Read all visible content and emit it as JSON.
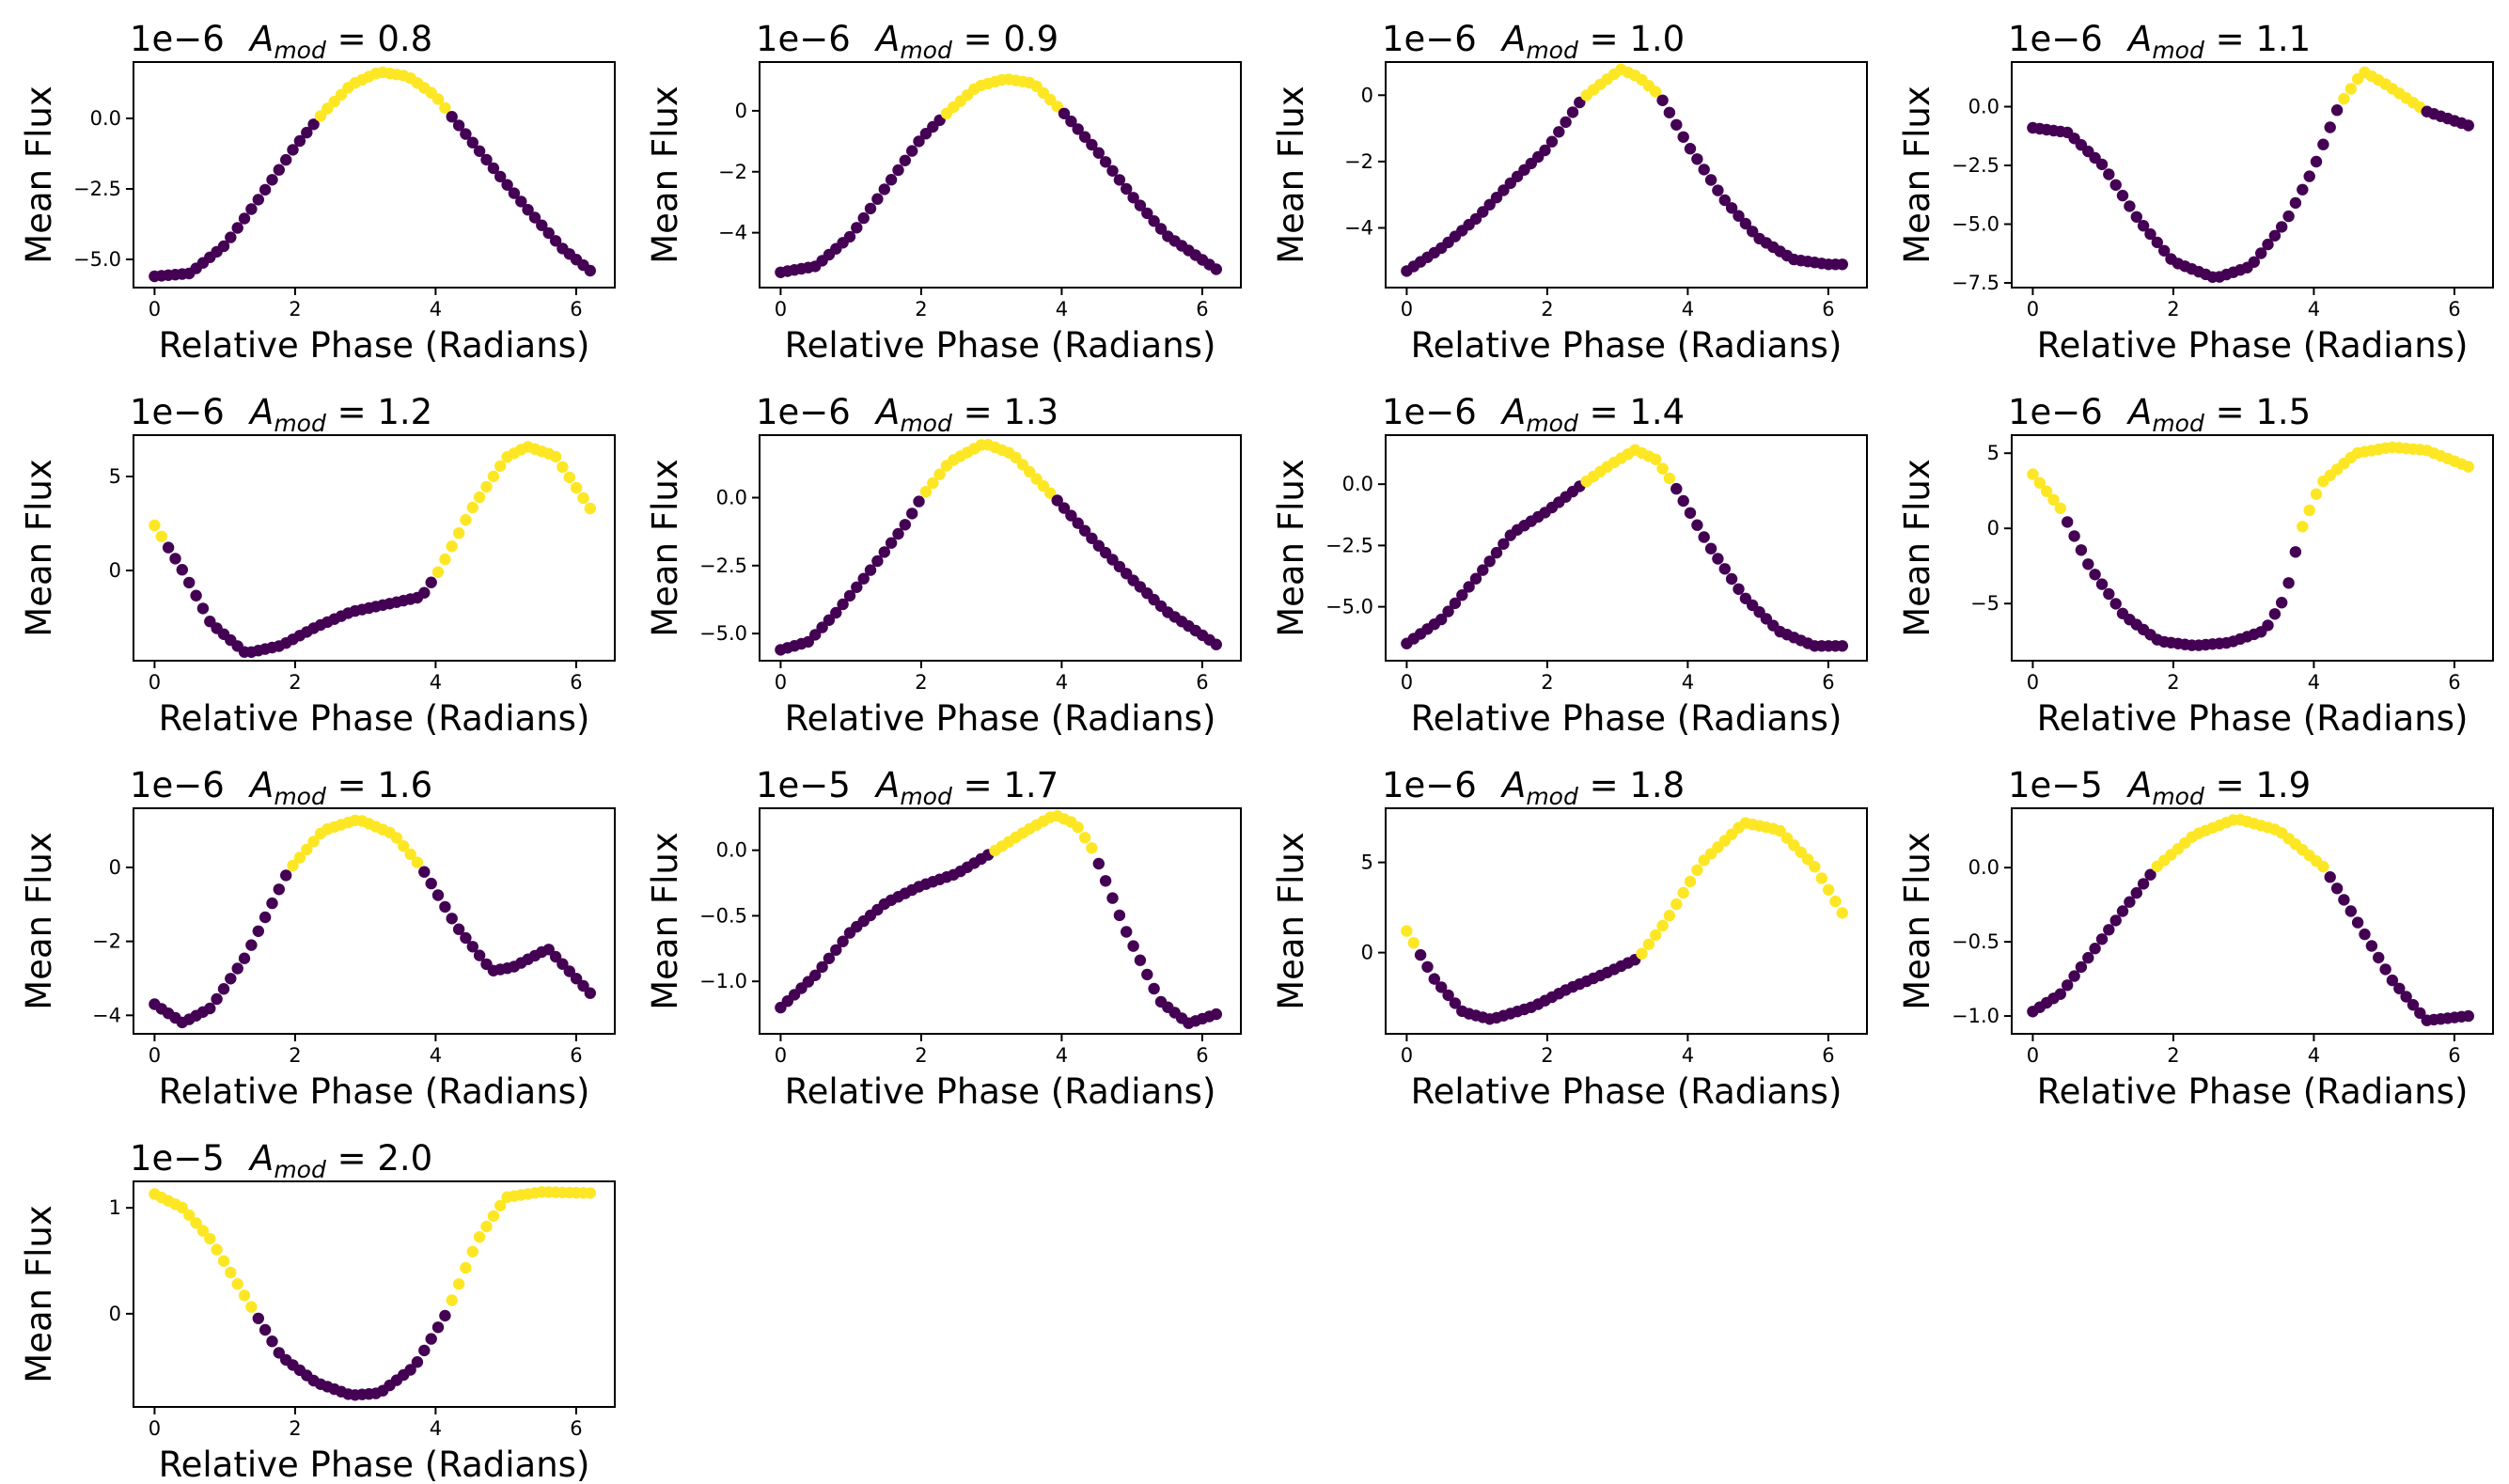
{
  "figure": {
    "colors": {
      "low": "#440154",
      "high": "#fde725",
      "axes": "#000000",
      "background": "#ffffff"
    },
    "xlabel": "Relative Phase (Radians)",
    "ylabel": "Mean Flux",
    "title_symbol": "A",
    "title_subscript": "mod",
    "xticks": [
      0,
      2,
      4,
      6
    ],
    "xlim": [
      -0.3,
      6.55
    ]
  },
  "chart_data": [
    {
      "type": "scatter",
      "title": "A_mod = 0.8",
      "amod": "0.8",
      "offset": "1e−6",
      "xlabel": "Relative Phase (Radians)",
      "ylabel": "Mean Flux",
      "ylim": [
        -6.0,
        2.0
      ],
      "yticks": [
        -5.0,
        -2.5,
        0.0
      ],
      "ytick_labels": [
        "−5.0",
        "−2.5",
        "0.0"
      ],
      "xticks": [
        0,
        2,
        4,
        6
      ],
      "xtick_labels": [
        "0",
        "2",
        "4",
        "6"
      ],
      "highlight_x": [
        2.35,
        4.2
      ],
      "curve": [
        [
          0.0,
          -5.6
        ],
        [
          0.5,
          -5.5
        ],
        [
          1.0,
          -4.5
        ],
        [
          1.5,
          -2.8
        ],
        [
          2.0,
          -1.0
        ],
        [
          2.4,
          0.2
        ],
        [
          2.8,
          1.2
        ],
        [
          3.2,
          1.65
        ],
        [
          3.6,
          1.5
        ],
        [
          4.0,
          0.8
        ],
        [
          4.25,
          0.0
        ],
        [
          4.8,
          -1.7
        ],
        [
          5.3,
          -3.2
        ],
        [
          5.8,
          -4.6
        ],
        [
          6.2,
          -5.4
        ]
      ]
    },
    {
      "type": "scatter",
      "title": "A_mod = 0.9",
      "amod": "0.9",
      "offset": "1e−6",
      "xlabel": "Relative Phase (Radians)",
      "ylabel": "Mean Flux",
      "ylim": [
        -5.8,
        1.6
      ],
      "yticks": [
        -4,
        -2,
        0
      ],
      "ytick_labels": [
        "−4",
        "−2",
        "0"
      ],
      "xticks": [
        0,
        2,
        4,
        6
      ],
      "xtick_labels": [
        "0",
        "2",
        "4",
        "6"
      ],
      "highlight_x": [
        2.35,
        4.0
      ],
      "curve": [
        [
          0.0,
          -5.3
        ],
        [
          0.5,
          -5.1
        ],
        [
          1.0,
          -4.1
        ],
        [
          1.5,
          -2.5
        ],
        [
          2.0,
          -0.9
        ],
        [
          2.4,
          0.0
        ],
        [
          2.8,
          0.8
        ],
        [
          3.2,
          1.05
        ],
        [
          3.6,
          0.9
        ],
        [
          4.0,
          0.0
        ],
        [
          4.5,
          -1.3
        ],
        [
          5.0,
          -2.8
        ],
        [
          5.5,
          -4.1
        ],
        [
          6.2,
          -5.2
        ]
      ]
    },
    {
      "type": "scatter",
      "title": "A_mod = 1.0",
      "amod": "1.0",
      "offset": "1e−6",
      "xlabel": "Relative Phase (Radians)",
      "ylabel": "Mean Flux",
      "ylim": [
        -5.8,
        1.0
      ],
      "yticks": [
        -4,
        -2,
        0
      ],
      "ytick_labels": [
        "−4",
        "−2",
        "0"
      ],
      "xticks": [
        0,
        2,
        4,
        6
      ],
      "xtick_labels": [
        "0",
        "2",
        "4",
        "6"
      ],
      "highlight_x": [
        2.5,
        3.6
      ],
      "curve": [
        [
          0.0,
          -5.3
        ],
        [
          0.5,
          -4.6
        ],
        [
          1.0,
          -3.7
        ],
        [
          1.5,
          -2.6
        ],
        [
          2.0,
          -1.6
        ],
        [
          2.5,
          -0.1
        ],
        [
          2.8,
          0.4
        ],
        [
          3.05,
          0.78
        ],
        [
          3.3,
          0.55
        ],
        [
          3.6,
          0.0
        ],
        [
          4.0,
          -1.5
        ],
        [
          4.5,
          -3.1
        ],
        [
          5.0,
          -4.3
        ],
        [
          5.5,
          -4.95
        ],
        [
          6.0,
          -5.1
        ],
        [
          6.2,
          -5.1
        ]
      ]
    },
    {
      "type": "scatter",
      "title": "A_mod = 1.1",
      "amod": "1.1",
      "offset": "1e−6",
      "xlabel": "Relative Phase (Radians)",
      "ylabel": "Mean Flux",
      "ylim": [
        -7.7,
        1.9
      ],
      "yticks": [
        -7.5,
        -5.0,
        -2.5,
        0.0
      ],
      "ytick_labels": [
        "−7.5",
        "−5.0",
        "−2.5",
        "0.0"
      ],
      "xticks": [
        0,
        2,
        4,
        6
      ],
      "xtick_labels": [
        "0",
        "2",
        "4",
        "6"
      ],
      "highlight_x": [
        4.35,
        5.6
      ],
      "curve": [
        [
          0.0,
          -0.9
        ],
        [
          0.5,
          -1.1
        ],
        [
          1.0,
          -2.5
        ],
        [
          1.5,
          -4.8
        ],
        [
          2.0,
          -6.6
        ],
        [
          2.6,
          -7.3
        ],
        [
          3.1,
          -6.8
        ],
        [
          3.6,
          -4.9
        ],
        [
          4.0,
          -2.6
        ],
        [
          4.35,
          0.0
        ],
        [
          4.7,
          1.5
        ],
        [
          5.0,
          1.0
        ],
        [
          5.6,
          -0.2
        ],
        [
          6.2,
          -0.8
        ]
      ]
    },
    {
      "type": "scatter",
      "title": "A_mod = 1.2",
      "amod": "1.2",
      "offset": "1e−6",
      "xlabel": "Relative Phase (Radians)",
      "ylabel": "Mean Flux",
      "ylim": [
        -4.8,
        7.2
      ],
      "yticks": [
        0,
        5
      ],
      "ytick_labels": [
        "0",
        "5"
      ],
      "xticks": [
        0,
        2,
        4,
        6
      ],
      "xtick_labels": [
        "0",
        "2",
        "4",
        "6"
      ],
      "highlight_x": [
        0.0,
        0.15,
        4.0,
        6.5
      ],
      "curve": [
        [
          0.0,
          2.4
        ],
        [
          0.4,
          0.0
        ],
        [
          0.8,
          -2.8
        ],
        [
          1.3,
          -4.4
        ],
        [
          1.8,
          -4.0
        ],
        [
          2.3,
          -3.0
        ],
        [
          2.8,
          -2.2
        ],
        [
          3.3,
          -1.8
        ],
        [
          3.8,
          -1.4
        ],
        [
          4.05,
          0.0
        ],
        [
          4.5,
          3.2
        ],
        [
          5.0,
          6.0
        ],
        [
          5.3,
          6.6
        ],
        [
          5.7,
          6.1
        ],
        [
          6.2,
          3.3
        ]
      ]
    },
    {
      "type": "scatter",
      "title": "A_mod = 1.3",
      "amod": "1.3",
      "offset": "1e−6",
      "xlabel": "Relative Phase (Radians)",
      "ylabel": "Mean Flux",
      "ylim": [
        -6.0,
        2.3
      ],
      "yticks": [
        -5.0,
        -2.5,
        0.0
      ],
      "ytick_labels": [
        "−5.0",
        "−2.5",
        "0.0"
      ],
      "xticks": [
        0,
        2,
        4,
        6
      ],
      "xtick_labels": [
        "0",
        "2",
        "4",
        "6"
      ],
      "highlight_x": [
        2.0,
        3.9
      ],
      "curve": [
        [
          0.0,
          -5.6
        ],
        [
          0.4,
          -5.3
        ],
        [
          0.8,
          -4.2
        ],
        [
          1.3,
          -2.6
        ],
        [
          1.8,
          -0.9
        ],
        [
          2.0,
          0.0
        ],
        [
          2.4,
          1.3
        ],
        [
          2.9,
          2.0
        ],
        [
          3.3,
          1.6
        ],
        [
          3.9,
          0.0
        ],
        [
          4.5,
          -1.7
        ],
        [
          5.0,
          -3.0
        ],
        [
          5.5,
          -4.2
        ],
        [
          6.2,
          -5.4
        ]
      ]
    },
    {
      "type": "scatter",
      "title": "A_mod = 1.4",
      "amod": "1.4",
      "offset": "1e−6",
      "xlabel": "Relative Phase (Radians)",
      "ylabel": "Mean Flux",
      "ylim": [
        -7.2,
        2.0
      ],
      "yticks": [
        -5.0,
        -2.5,
        0.0
      ],
      "ytick_labels": [
        "−5.0",
        "−2.5",
        "0.0"
      ],
      "xticks": [
        0,
        2,
        4,
        6
      ],
      "xtick_labels": [
        "0",
        "2",
        "4",
        "6"
      ],
      "highlight_x": [
        2.5,
        3.8
      ],
      "curve": [
        [
          0.0,
          -6.5
        ],
        [
          0.5,
          -5.5
        ],
        [
          1.0,
          -3.8
        ],
        [
          1.5,
          -2.0
        ],
        [
          2.0,
          -1.1
        ],
        [
          2.5,
          0.0
        ],
        [
          2.9,
          0.8
        ],
        [
          3.25,
          1.4
        ],
        [
          3.55,
          1.0
        ],
        [
          3.8,
          0.0
        ],
        [
          4.3,
          -2.5
        ],
        [
          4.8,
          -4.6
        ],
        [
          5.3,
          -6.0
        ],
        [
          5.8,
          -6.6
        ],
        [
          6.2,
          -6.6
        ]
      ]
    },
    {
      "type": "scatter",
      "title": "A_mod = 1.5",
      "amod": "1.5",
      "offset": "1e−6",
      "xlabel": "Relative Phase (Radians)",
      "ylabel": "Mean Flux",
      "ylim": [
        -8.8,
        6.2
      ],
      "yticks": [
        -5,
        0,
        5
      ],
      "ytick_labels": [
        "−5",
        "0",
        "5"
      ],
      "xticks": [
        0,
        2,
        4,
        6
      ],
      "xtick_labels": [
        "0",
        "2",
        "4",
        "6"
      ],
      "highlight_x": [
        0.0,
        0.4,
        3.8,
        6.5
      ],
      "curve": [
        [
          0.0,
          3.6
        ],
        [
          0.4,
          1.3
        ],
        [
          0.8,
          -2.5
        ],
        [
          1.3,
          -5.8
        ],
        [
          1.8,
          -7.5
        ],
        [
          2.3,
          -7.8
        ],
        [
          2.8,
          -7.6
        ],
        [
          3.3,
          -6.8
        ],
        [
          3.6,
          -4.5
        ],
        [
          3.8,
          -0.3
        ],
        [
          4.1,
          3.0
        ],
        [
          4.6,
          5.0
        ],
        [
          5.1,
          5.4
        ],
        [
          5.6,
          5.2
        ],
        [
          6.2,
          4.1
        ]
      ]
    },
    {
      "type": "scatter",
      "title": "A_mod = 1.6",
      "amod": "1.6",
      "offset": "1e−6",
      "xlabel": "Relative Phase (Radians)",
      "ylabel": "Mean Flux",
      "ylim": [
        -4.5,
        1.6
      ],
      "yticks": [
        -4,
        -2,
        0
      ],
      "ytick_labels": [
        "−4",
        "−2",
        "0"
      ],
      "xticks": [
        0,
        2,
        4,
        6
      ],
      "xtick_labels": [
        "0",
        "2",
        "4",
        "6"
      ],
      "highlight_x": [
        1.9,
        3.8
      ],
      "curve": [
        [
          0.0,
          -3.7
        ],
        [
          0.4,
          -4.2
        ],
        [
          0.8,
          -3.8
        ],
        [
          1.3,
          -2.4
        ],
        [
          1.9,
          -0.1
        ],
        [
          2.4,
          1.0
        ],
        [
          2.9,
          1.3
        ],
        [
          3.4,
          0.9
        ],
        [
          3.8,
          0.0
        ],
        [
          4.3,
          -1.6
        ],
        [
          4.8,
          -2.8
        ],
        [
          5.1,
          -2.7
        ],
        [
          5.6,
          -2.2
        ],
        [
          6.2,
          -3.4
        ]
      ]
    },
    {
      "type": "scatter",
      "title": "A_mod = 1.7",
      "amod": "1.7",
      "offset": "1e−5",
      "xlabel": "Relative Phase (Radians)",
      "ylabel": "Mean Flux",
      "ylim": [
        -1.4,
        0.32
      ],
      "yticks": [
        -1.0,
        -0.5,
        0.0
      ],
      "ytick_labels": [
        "−1.0",
        "−0.5",
        "0.0"
      ],
      "xticks": [
        0,
        2,
        4,
        6
      ],
      "xtick_labels": [
        "0",
        "2",
        "4",
        "6"
      ],
      "highlight_x": [
        3.0,
        4.45
      ],
      "curve": [
        [
          0.0,
          -1.2
        ],
        [
          0.5,
          -0.95
        ],
        [
          1.0,
          -0.62
        ],
        [
          1.5,
          -0.4
        ],
        [
          2.0,
          -0.27
        ],
        [
          2.5,
          -0.18
        ],
        [
          3.0,
          -0.02
        ],
        [
          3.5,
          0.15
        ],
        [
          3.9,
          0.27
        ],
        [
          4.2,
          0.2
        ],
        [
          4.45,
          0.0
        ],
        [
          4.9,
          -0.6
        ],
        [
          5.4,
          -1.15
        ],
        [
          5.8,
          -1.32
        ],
        [
          6.2,
          -1.25
        ]
      ]
    },
    {
      "type": "scatter",
      "title": "A_mod = 1.8",
      "amod": "1.8",
      "offset": "1e−6",
      "xlabel": "Relative Phase (Radians)",
      "ylabel": "Mean Flux",
      "ylim": [
        -4.5,
        8.0
      ],
      "yticks": [
        0,
        5
      ],
      "ytick_labels": [
        "0",
        "5"
      ],
      "xticks": [
        0,
        2,
        4,
        6
      ],
      "xtick_labels": [
        "0",
        "2",
        "4",
        "6"
      ],
      "highlight_x": [
        0.0,
        0.15,
        3.3,
        6.5
      ],
      "curve": [
        [
          0.0,
          1.2
        ],
        [
          0.4,
          -1.5
        ],
        [
          0.8,
          -3.3
        ],
        [
          1.2,
          -3.7
        ],
        [
          1.8,
          -3.0
        ],
        [
          2.3,
          -2.0
        ],
        [
          2.8,
          -1.2
        ],
        [
          3.3,
          -0.3
        ],
        [
          3.7,
          1.8
        ],
        [
          4.2,
          5.0
        ],
        [
          4.8,
          7.2
        ],
        [
          5.3,
          6.8
        ],
        [
          5.8,
          4.8
        ],
        [
          6.2,
          2.2
        ]
      ]
    },
    {
      "type": "scatter",
      "title": "A_mod = 1.9",
      "amod": "1.9",
      "offset": "1e−5",
      "xlabel": "Relative Phase (Radians)",
      "ylabel": "Mean Flux",
      "ylim": [
        -1.12,
        0.4
      ],
      "yticks": [
        -1.0,
        -0.5,
        0.0
      ],
      "ytick_labels": [
        "−1.0",
        "−0.5",
        "0.0"
      ],
      "xticks": [
        0,
        2,
        4,
        6
      ],
      "xtick_labels": [
        "0",
        "2",
        "4",
        "6"
      ],
      "highlight_x": [
        1.75,
        4.15
      ],
      "curve": [
        [
          0.0,
          -0.97
        ],
        [
          0.4,
          -0.85
        ],
        [
          0.8,
          -0.6
        ],
        [
          1.3,
          -0.28
        ],
        [
          1.75,
          0.0
        ],
        [
          2.3,
          0.22
        ],
        [
          2.9,
          0.33
        ],
        [
          3.5,
          0.25
        ],
        [
          4.15,
          0.0
        ],
        [
          4.6,
          -0.35
        ],
        [
          5.1,
          -0.75
        ],
        [
          5.6,
          -1.03
        ],
        [
          6.2,
          -1.0
        ]
      ]
    },
    {
      "type": "scatter",
      "title": "A_mod = 2.0",
      "amod": "2.0",
      "offset": "1e−5",
      "xlabel": "Relative Phase (Radians)",
      "ylabel": "Mean Flux",
      "ylim": [
        -0.88,
        1.25
      ],
      "yticks": [
        0,
        1
      ],
      "ytick_labels": [
        "0",
        "1"
      ],
      "xticks": [
        0,
        2,
        4,
        6
      ],
      "xtick_labels": [
        "0",
        "2",
        "4",
        "6"
      ],
      "highlight_x": [
        0.0,
        1.4,
        4.15,
        6.5
      ],
      "curve": [
        [
          0.0,
          1.13
        ],
        [
          0.4,
          1.0
        ],
        [
          0.8,
          0.7
        ],
        [
          1.3,
          0.15
        ],
        [
          1.8,
          -0.4
        ],
        [
          2.3,
          -0.65
        ],
        [
          2.8,
          -0.77
        ],
        [
          3.2,
          -0.75
        ],
        [
          3.7,
          -0.5
        ],
        [
          4.15,
          0.0
        ],
        [
          4.6,
          0.7
        ],
        [
          5.0,
          1.1
        ],
        [
          5.5,
          1.15
        ],
        [
          6.2,
          1.14
        ]
      ]
    }
  ]
}
